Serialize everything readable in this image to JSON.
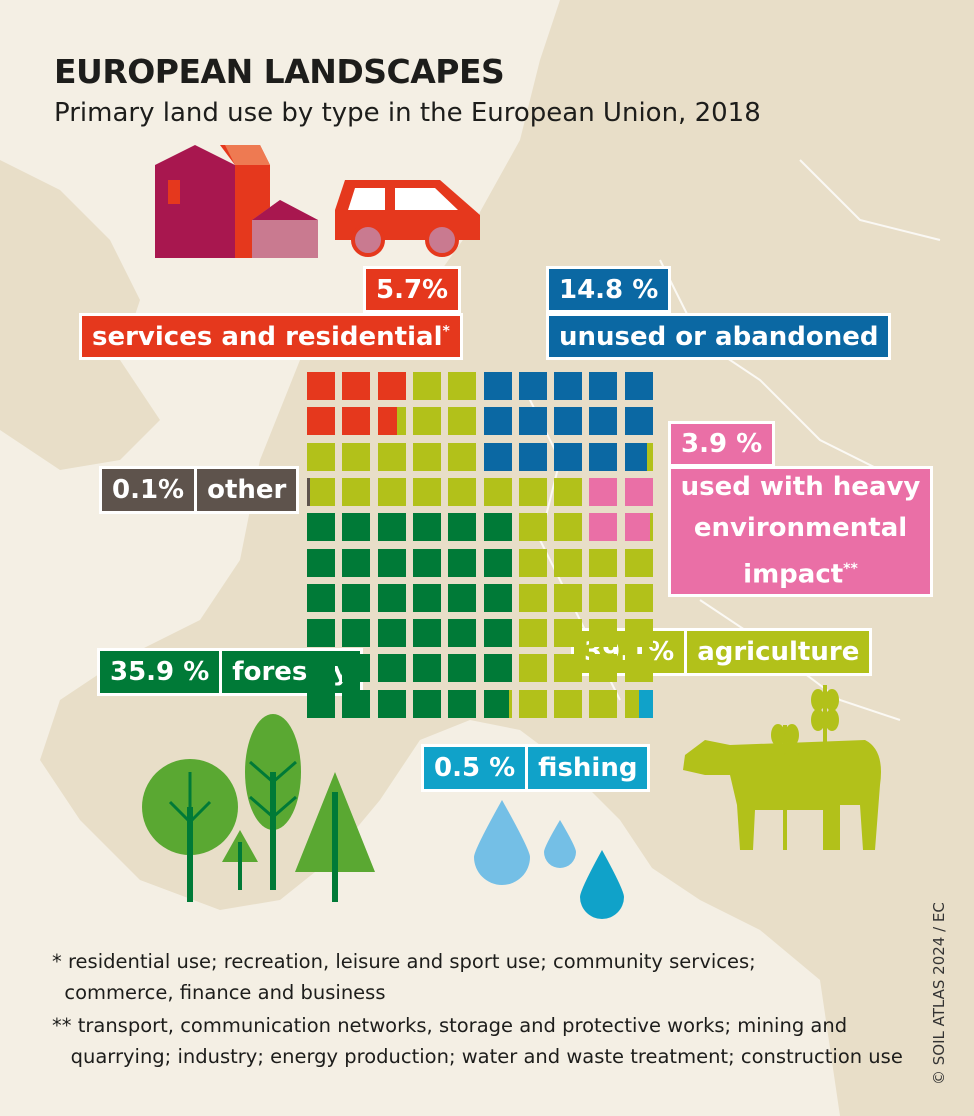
{
  "title": "EUROPEAN LANDSCAPES",
  "subtitle": "Primary land use by type in the European Union, 2018",
  "labels": {
    "services_pct": "5.7%",
    "services": "services and residential",
    "services_mark": "*",
    "unused_pct": "14.8 %",
    "unused": "unused or abandoned",
    "heavy_pct": "3.9 %",
    "heavy_l1": "used with heavy",
    "heavy_l2": "environmental",
    "heavy_l3": "impact",
    "heavy_mark": "**",
    "other_pct": "0.1%",
    "other": "other",
    "forestry_pct": "35.9 %",
    "forestry": "forestry",
    "agriculture_pct": "39.1%",
    "agriculture": "agriculture",
    "fishing_pct": "0.5 %",
    "fishing": "fishing"
  },
  "footnotes": {
    "f1_mark": "*",
    "f1_l1": "residential use; recreation, leisure and sport use; community services;",
    "f1_l2": "commerce, finance and business",
    "f2_mark": "**",
    "f2_l1": "transport, communication networks, storage and protective works; mining and",
    "f2_l2": "quarrying; industry; energy production; water and waste treatment; construction use"
  },
  "credit": "© SOIL ATLAS 2024 / EC",
  "chart_data": {
    "type": "waffle",
    "title": "EUROPEAN LANDSCAPES",
    "subtitle": "Primary land use by type in the European Union, 2018",
    "unit": "percent",
    "grid": [
      10,
      10
    ],
    "categories": [
      {
        "name": "services and residential",
        "value": 5.7,
        "color": "#e5381d"
      },
      {
        "name": "unused or abandoned",
        "value": 14.8,
        "color": "#0b68a3"
      },
      {
        "name": "used with heavy environmental impact",
        "value": 3.9,
        "color": "#ea6fa6"
      },
      {
        "name": "other",
        "value": 0.1,
        "color": "#5e534c"
      },
      {
        "name": "forestry",
        "value": 35.9,
        "color": "#007a37"
      },
      {
        "name": "agriculture",
        "value": 39.1,
        "color": "#b2c11a"
      },
      {
        "name": "fishing",
        "value": 0.5,
        "color": "#10a2c9"
      }
    ]
  }
}
